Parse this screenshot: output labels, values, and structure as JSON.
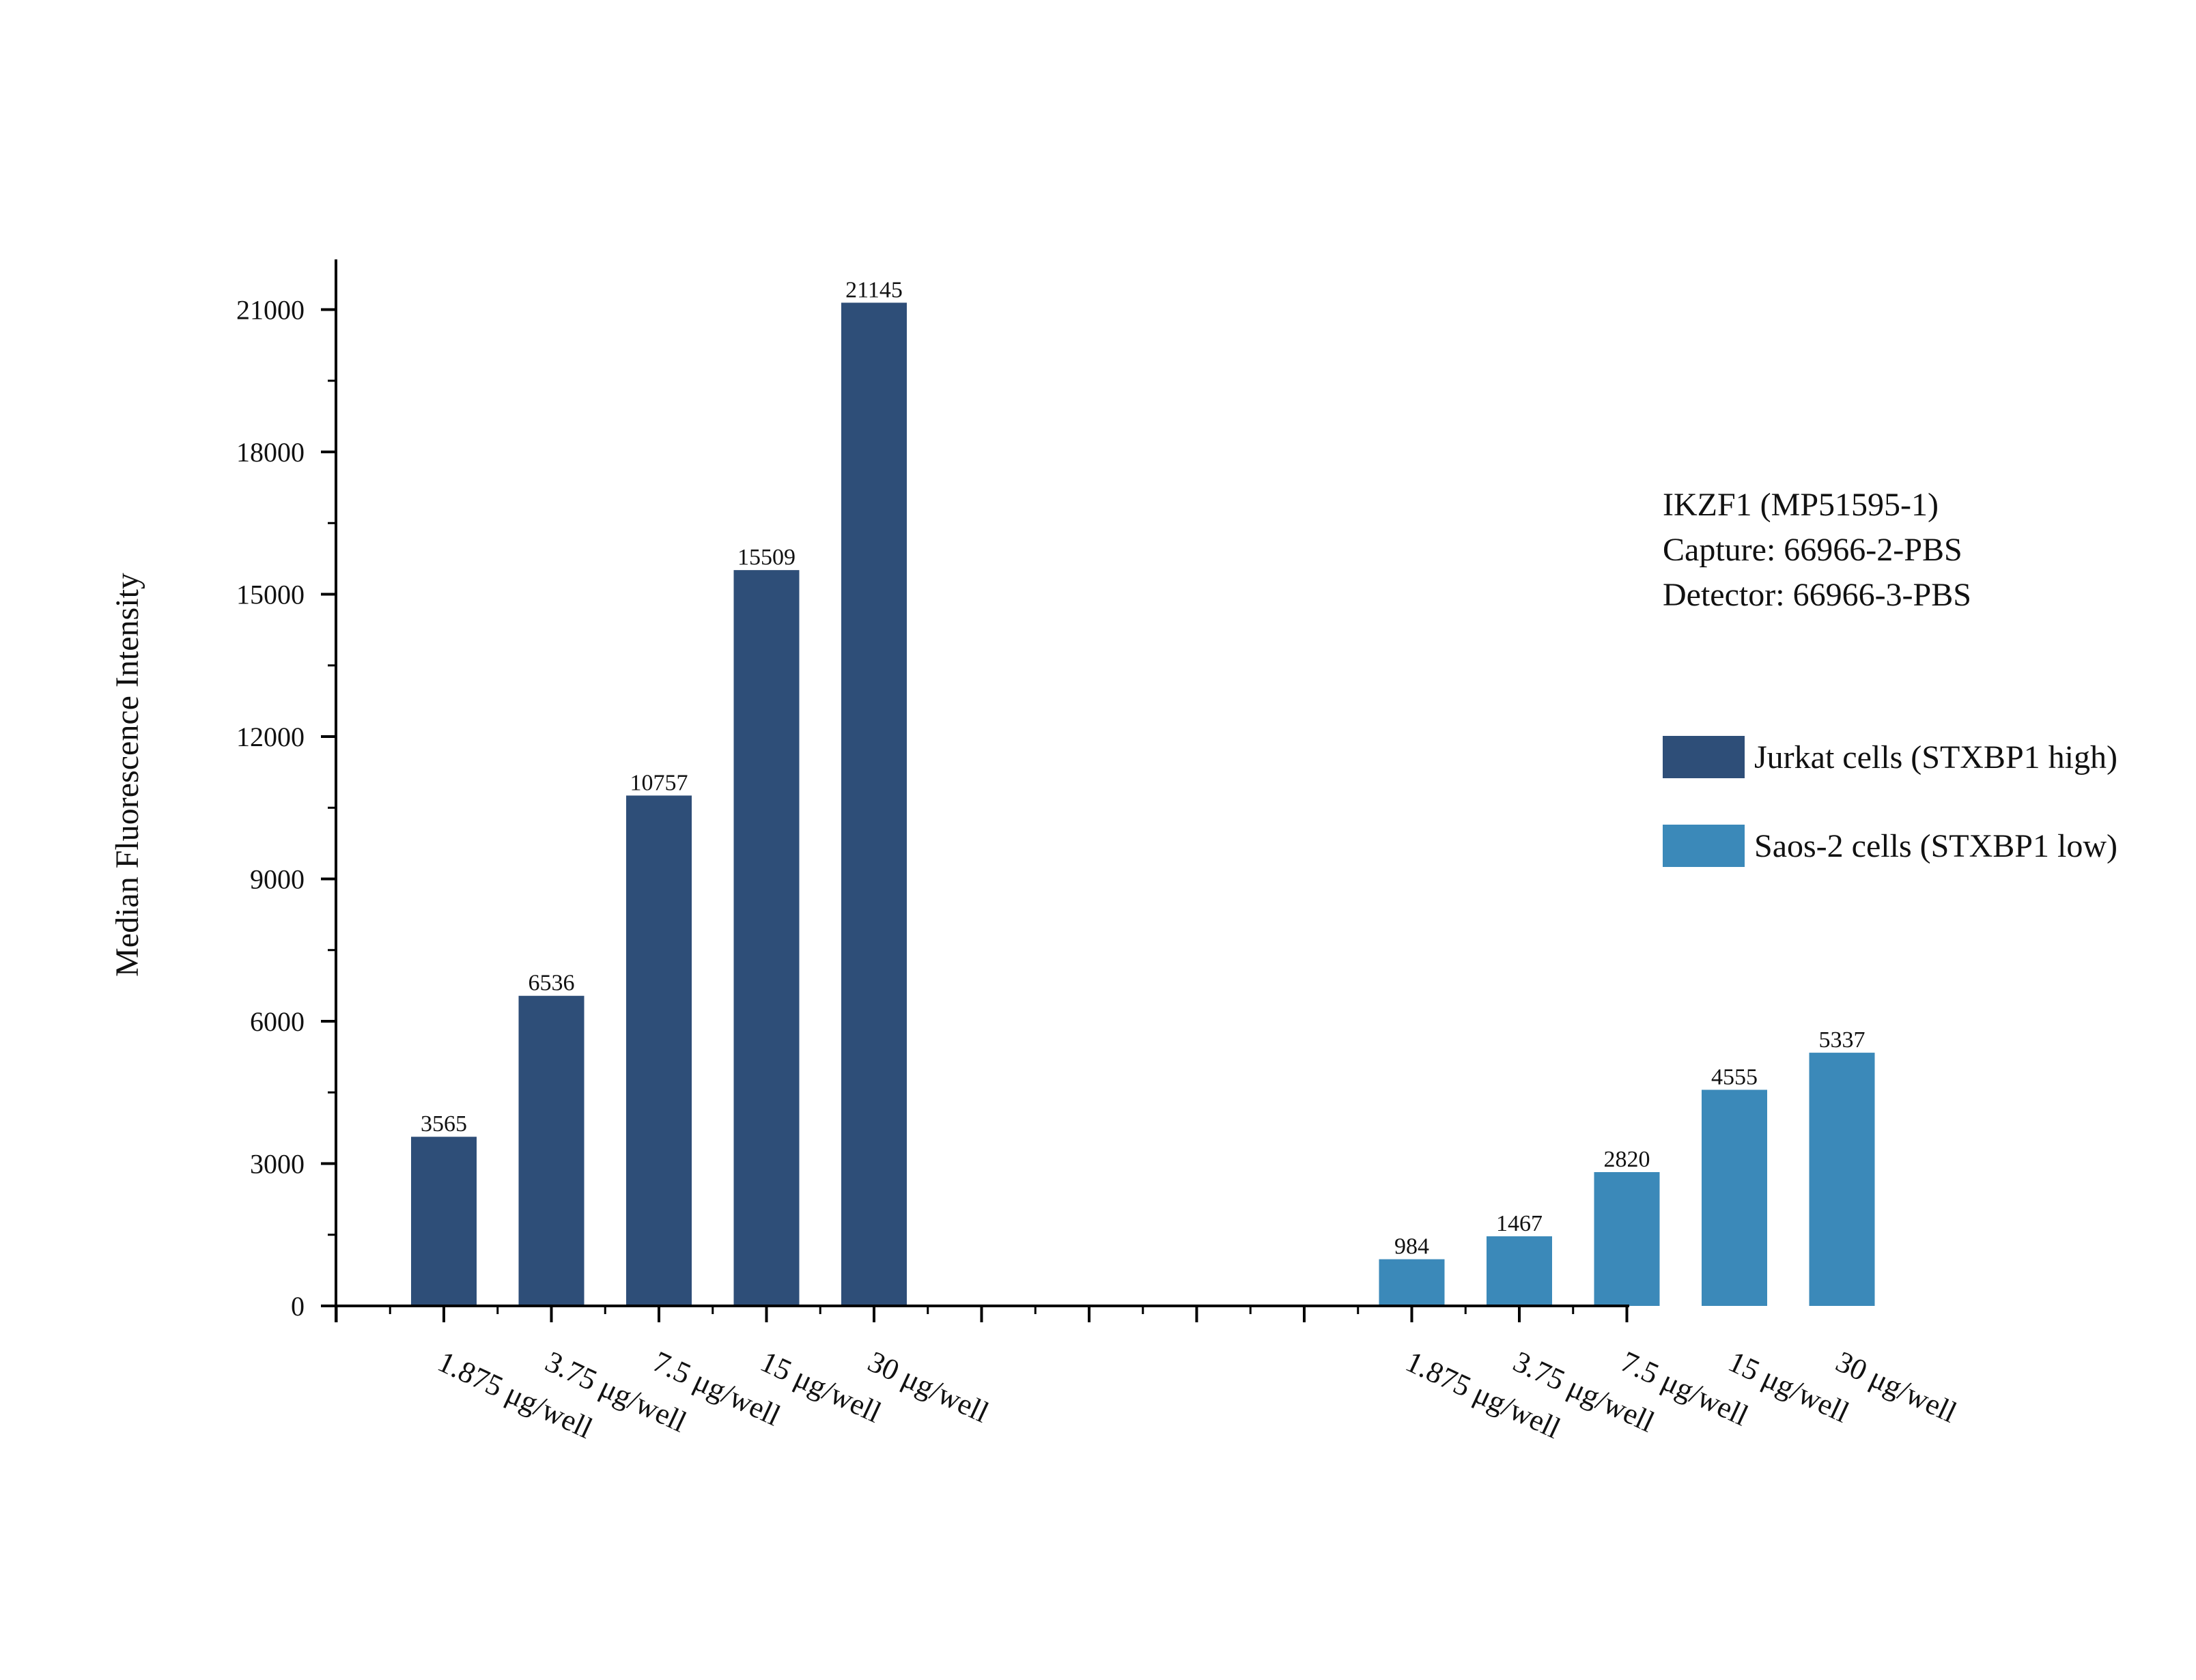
{
  "chart_data": {
    "type": "bar",
    "ylabel": "Median Fluorescence Intensity",
    "xlabel": "",
    "ylim": [
      0,
      22000
    ],
    "yticks": [
      0,
      3000,
      6000,
      9000,
      12000,
      15000,
      18000,
      21000
    ],
    "groups": [
      {
        "name": "Jurkat cells (STXBP1 high)",
        "color": "#2e4e78",
        "categories": [
          "1.875 μg/well",
          "3.75 μg/well",
          "7.5 μg/well",
          "15 μg/well",
          "30 μg/well"
        ],
        "values": [
          3565,
          6536,
          10757,
          15509,
          21145
        ]
      },
      {
        "name": "Saos-2 cells (STXBP1 low)",
        "color": "#3b89b9",
        "categories": [
          "1.875 μg/well",
          "3.75 μg/well",
          "7.5 μg/well",
          "15 μg/well",
          "30 μg/well"
        ],
        "values": [
          984,
          1467,
          2820,
          4555,
          5337
        ]
      }
    ],
    "annotation": {
      "line1": "IKZF1 (MP51595-1)",
      "line2": "Capture: 66966-2-PBS",
      "line3": "Detector: 66966-3-PBS"
    },
    "legend": [
      {
        "label": "Jurkat cells (STXBP1 high)",
        "color": "#2e4e78"
      },
      {
        "label": "Saos-2 cells (STXBP1 low)",
        "color": "#3b89b9"
      }
    ]
  }
}
